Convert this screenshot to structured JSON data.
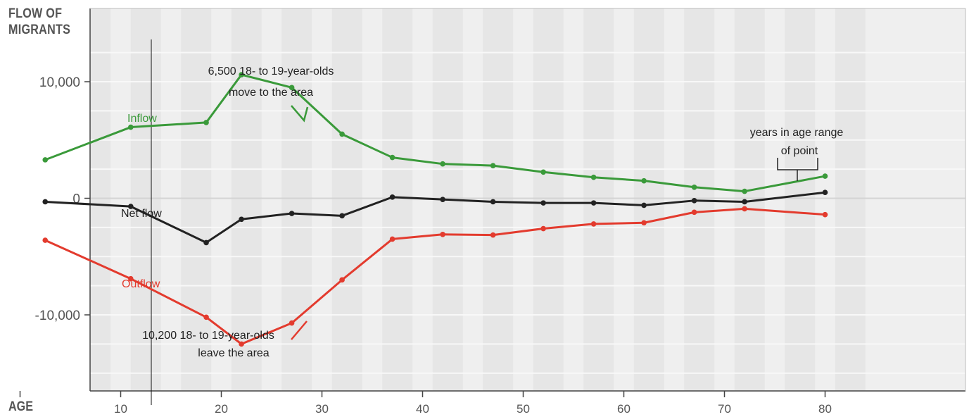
{
  "chart_data": {
    "type": "line",
    "ylabel_line1": "FLOW OF",
    "ylabel_line2": "MIGRANTS",
    "xlabel": "AGE",
    "xlim": [
      0,
      84
    ],
    "ylim": [
      -16500,
      14000
    ],
    "xticks": [
      10,
      20,
      30,
      40,
      50,
      60,
      70,
      80
    ],
    "yticks": [
      10000,
      0,
      -10000
    ],
    "ytick_labels": [
      "10,000",
      "0",
      "-10,000"
    ],
    "x": [
      2.5,
      11,
      18.5,
      22,
      27,
      32,
      37,
      42,
      47,
      52,
      57,
      62,
      67,
      72,
      80
    ],
    "series": [
      {
        "name": "Inflow",
        "color": "#3a9a3a",
        "values": [
          3300,
          6100,
          6500,
          10600,
          9500,
          5500,
          3500,
          2950,
          2800,
          2250,
          1800,
          1500,
          950,
          600,
          1900
        ]
      },
      {
        "name": "Net flow",
        "color": "#222222",
        "values": [
          -300,
          -700,
          -3800,
          -1800,
          -1300,
          -1500,
          100,
          -100,
          -300,
          -400,
          -400,
          -600,
          -200,
          -300,
          500
        ]
      },
      {
        "name": "Outflow",
        "color": "#e33b2e",
        "values": [
          -3600,
          -6900,
          -10200,
          -12500,
          -10700,
          -7000,
          -3500,
          -3100,
          -3150,
          -2600,
          -2200,
          -2100,
          -1200,
          -900,
          -1400
        ]
      }
    ],
    "annotations": {
      "inflow_note_line1": "6,500 18- to 19-year-olds",
      "inflow_note_line2": "move to the area",
      "outflow_note_line1": "10,200 18- to 19-year-olds",
      "outflow_note_line2": "leave the area",
      "range_note_line1": "years in age range",
      "range_note_line2": "of point"
    },
    "grid": true,
    "colors": {
      "panel": "#efefef",
      "band": "#e3e3e3",
      "gridline": "#f8f8f8"
    }
  }
}
